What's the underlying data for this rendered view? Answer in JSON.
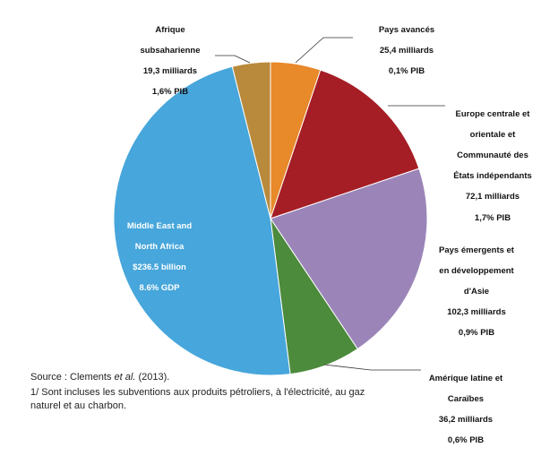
{
  "chart_data": {
    "type": "pie",
    "slices": [
      {
        "name": "Pays avancés",
        "amount": "25,4 milliards",
        "gdp": "0,1% PIB",
        "value": 25.4,
        "color": "#E8892A"
      },
      {
        "name": "Europe centrale et orientale et Communauté des États indépendants",
        "amount": "72,1 milliards",
        "gdp": "1,7% PIB",
        "value": 72.1,
        "color": "#A51E25"
      },
      {
        "name": "Pays émergents et en développement d'Asie",
        "amount": "102,3 milliards",
        "gdp": "0,9% PIB",
        "value": 102.3,
        "color": "#9B85B8"
      },
      {
        "name": "Amérique latine et Caraïbes",
        "amount": "36,2 milliards",
        "gdp": "0,6% PIB",
        "value": 36.2,
        "color": "#4C8A3C"
      },
      {
        "name": "Middle East and North Africa",
        "amount": "$236.5 billion",
        "gdp": "8.6% GDP",
        "value": 236.5,
        "color": "#47A6DB"
      },
      {
        "name": "Afrique subsaharienne",
        "amount": "19,3 milliards",
        "gdp": "1,6% PIB",
        "value": 19.3,
        "color": "#B98A3C"
      }
    ]
  },
  "labels": {
    "advanced": {
      "l1": "Pays avancés",
      "l2": "25,4 milliards",
      "l3": "0,1% PIB"
    },
    "cee": {
      "l1": "Europe centrale et",
      "l2": "orientale et",
      "l3": "Communauté des",
      "l4": "États indépendants",
      "l5": "72,1 milliards",
      "l6": "1,7% PIB"
    },
    "asia": {
      "l1": "Pays émergents et",
      "l2": "en développement",
      "l3": "d'Asie",
      "l4": "102,3 milliards",
      "l5": "0,9% PIB"
    },
    "latam": {
      "l1": "Amérique latine et",
      "l2": "Caraïbes",
      "l3": "36,2 milliards",
      "l4": "0,6% PIB"
    },
    "mena": {
      "l1": "Middle East and",
      "l2": "North Africa",
      "l3": "$236.5 billion",
      "l4": "8.6% GDP"
    },
    "ssa": {
      "l1": "Afrique",
      "l2": "subsaharienne",
      "l3": "19,3 milliards",
      "l4": "1,6% PIB"
    }
  },
  "notes": {
    "source_prefix": "Source : Clements ",
    "source_italic": "et al.",
    "source_suffix": " (2013).",
    "footnote_l1": "1/ Sont incluses les subventions aux produits pétroliers, à l'électricité, au gaz",
    "footnote_l2": "naturel et au charbon."
  }
}
